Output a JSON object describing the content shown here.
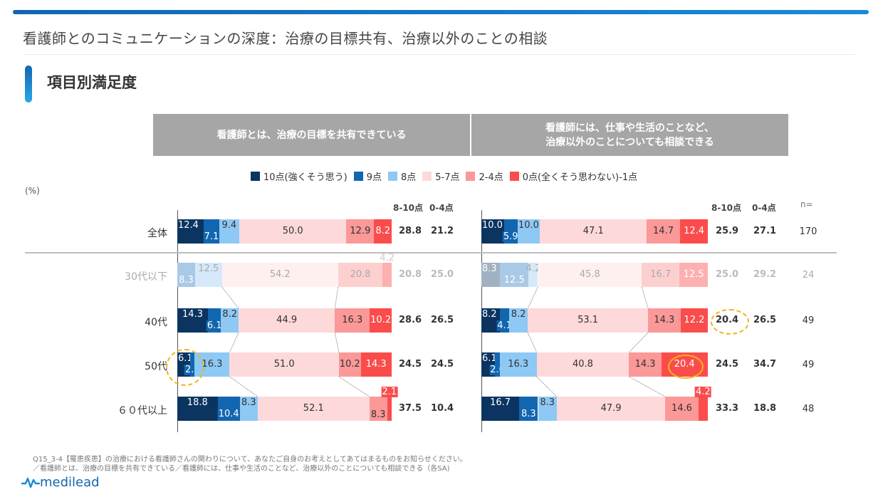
{
  "header": {
    "title": "看護師とのコミュニケーションの深度：治療の目標共有、治療以外のことの相談",
    "section_title": "項目別満足度"
  },
  "colors": {
    "brand": "#1266b0",
    "header_gray": "#a6a6a6",
    "highlight": "#f2b51a"
  },
  "chart_data": {
    "type": "bar",
    "subtype": "stacked-horizontal-100",
    "unit": "(%)",
    "legend": [
      {
        "key": "p10",
        "label": "10点(強くそう思う)",
        "color": "#0b3460"
      },
      {
        "key": "p9",
        "label": "9点",
        "color": "#1266b0"
      },
      {
        "key": "p8",
        "label": "8点",
        "color": "#8ec8f4"
      },
      {
        "key": "p57",
        "label": "5-7点",
        "color": "#fdd9d9"
      },
      {
        "key": "p24",
        "label": "2-4点",
        "color": "#fb9898"
      },
      {
        "key": "p01",
        "label": "0点(全くそう思わない)-1点",
        "color": "#fb4c4c"
      }
    ],
    "legend_position": "top",
    "summary_headers": {
      "top": "8-10点",
      "bottom": "0-4点",
      "n": "n="
    },
    "categories": [
      "全体",
      "30代以下",
      "40代",
      "50代",
      "６０代以上"
    ],
    "n": [
      170,
      24,
      49,
      49,
      48
    ],
    "faded_rows": [
      1
    ],
    "panels": [
      {
        "title": "看護師とは、治療の目標を共有できている",
        "series": [
          {
            "name": "10点(強くそう思う)",
            "values": [
              12.4,
              0,
              14.3,
              6.1,
              18.8
            ]
          },
          {
            "name": "9点",
            "values": [
              7.1,
              8.3,
              6.1,
              2.0,
              10.4
            ]
          },
          {
            "name": "8点",
            "values": [
              9.4,
              12.5,
              8.2,
              16.3,
              8.3
            ]
          },
          {
            "name": "5-7点",
            "values": [
              50.0,
              54.2,
              44.9,
              51.0,
              52.1
            ]
          },
          {
            "name": "2-4点",
            "values": [
              12.9,
              20.8,
              16.3,
              10.2,
              8.3
            ]
          },
          {
            "name": "0点(全くそう思わない)-1点",
            "values": [
              8.2,
              4.2,
              10.2,
              14.3,
              2.1
            ]
          }
        ],
        "top_box_8_10": [
          28.8,
          20.8,
          28.6,
          24.5,
          37.5
        ],
        "bottom_box_0_4": [
          21.2,
          25.0,
          26.5,
          24.5,
          10.4
        ],
        "highlights": [
          {
            "row": 3,
            "segments": "p10-p9",
            "style": "dashed"
          }
        ]
      },
      {
        "title": "看護師には、仕事や生活のことなど、\n治療以外のことについても相談できる",
        "series": [
          {
            "name": "10点(強くそう思う)",
            "values": [
              10.0,
              8.3,
              8.2,
              6.1,
              16.7
            ]
          },
          {
            "name": "9点",
            "values": [
              5.9,
              12.5,
              4.1,
              2.0,
              8.3
            ]
          },
          {
            "name": "8点",
            "values": [
              10.0,
              4.2,
              8.2,
              16.3,
              8.3
            ]
          },
          {
            "name": "5-7点",
            "values": [
              47.1,
              45.8,
              53.1,
              40.8,
              47.9
            ]
          },
          {
            "name": "2-4点",
            "values": [
              14.7,
              16.7,
              14.3,
              14.3,
              14.6
            ]
          },
          {
            "name": "0点(全くそう思わない)-1点",
            "values": [
              12.4,
              12.5,
              12.2,
              20.4,
              4.2
            ]
          }
        ],
        "top_box_8_10": [
          25.9,
          25.0,
          20.4,
          24.5,
          33.3
        ],
        "bottom_box_0_4": [
          27.1,
          29.2,
          26.5,
          34.7,
          18.8
        ],
        "highlights": [
          {
            "row": 2,
            "segments": "top_box_8_10",
            "style": "dashed"
          },
          {
            "row": 3,
            "segments": "p01",
            "style": "solid"
          }
        ]
      }
    ],
    "xlim": [
      0,
      100
    ],
    "grid": false
  },
  "footnote": "Q15_3-4【罹患疾患】の治療における看護師さんの関わりについて、あなたご自身のお考えとしてあてはまるものをお知らせください。\n／看護師とは、治療の目標を共有できている／看護師には、仕事や生活のことなど、治療以外のことについても相談できる（各SA)",
  "logo": {
    "text": "medilead",
    "icon": "pulse-wave-icon"
  }
}
